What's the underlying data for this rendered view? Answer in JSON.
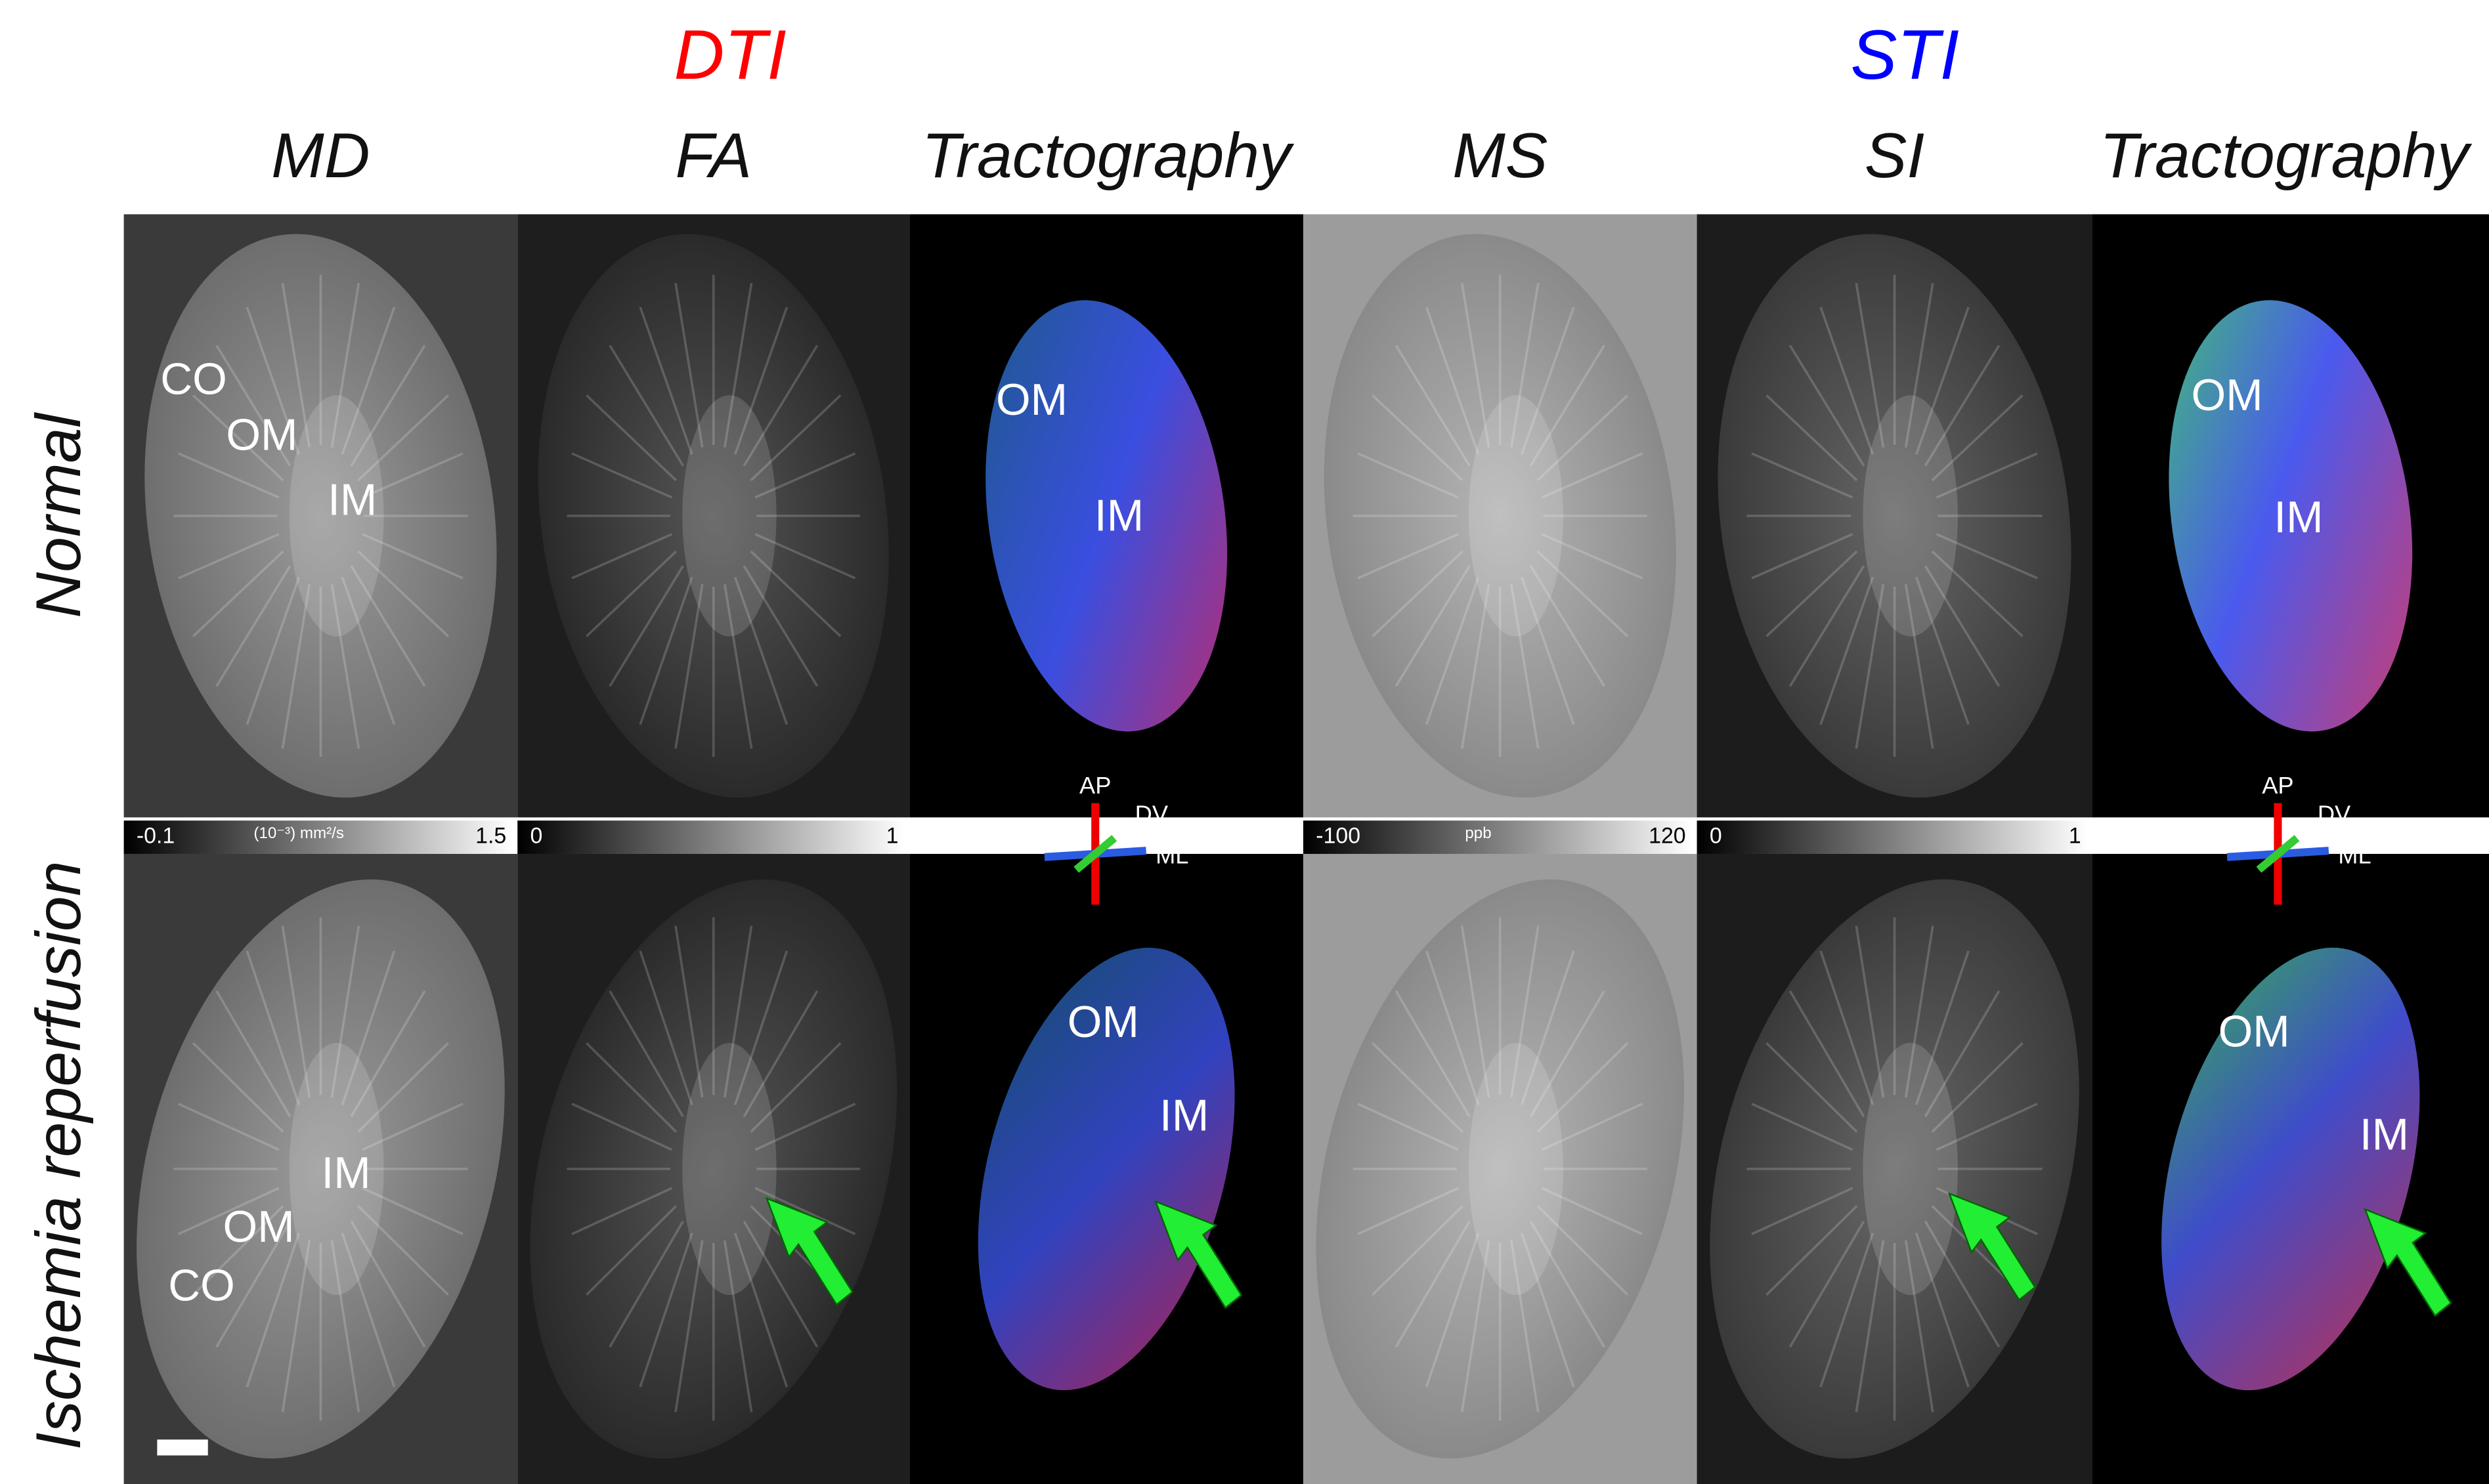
{
  "groups": [
    {
      "title": "DTI",
      "color": "#ff0000"
    },
    {
      "title": "STI",
      "color": "#0000ff"
    }
  ],
  "columns": [
    "MD",
    "FA",
    "Tractography",
    "MS",
    "SI",
    "Tractography"
  ],
  "rows": [
    {
      "label": "Normal",
      "annotations": [
        [
          "CO",
          "OM",
          "IM"
        ],
        [],
        [
          "OM",
          "IM"
        ],
        [],
        [],
        [
          "OM",
          "IM"
        ]
      ]
    },
    {
      "label": "Ischemia reperfusion",
      "annotations": [
        [
          "IM",
          "OM",
          "CO"
        ],
        [],
        [
          "OM",
          "IM"
        ],
        [],
        [],
        [
          "OM",
          "IM"
        ]
      ]
    }
  ],
  "colorbars": [
    {
      "min": "-0.1",
      "unit": "(10⁻³) mm²/s",
      "max": "1.5"
    },
    {
      "min": "0",
      "max": "1"
    },
    {
      "min": "-100",
      "unit": "ppb",
      "max": "120"
    },
    {
      "min": "0",
      "max": "1"
    }
  ],
  "orientation_axes": [
    "AP",
    "DV",
    "ML"
  ]
}
